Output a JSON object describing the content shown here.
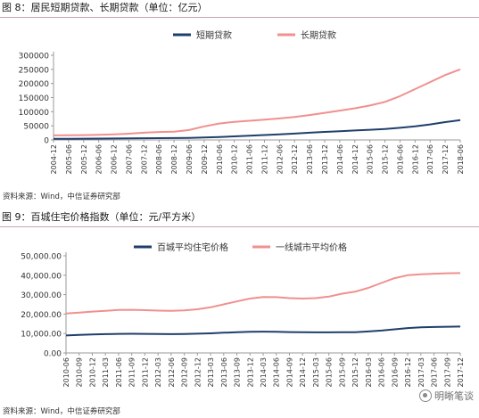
{
  "fig1": {
    "title": "图 8：居民短期贷款、长期贷款（单位：亿元）",
    "source": "资料来源：Wind，中信证券研究部"
  },
  "fig2": {
    "title": "图 9：百城住宅价格指数（单位：元/平方米）",
    "source": "资料来源：Wind，中信证券研究部"
  },
  "watermark": "明晰笔谈",
  "colors": {
    "short_series": "#1f3f6b",
    "long_series": "#f0908f",
    "axis": "#9a9a9a",
    "text": "#333333"
  },
  "chart_data": [
    {
      "type": "line",
      "title": "",
      "xlabel": "",
      "ylabel": "",
      "ylim": [
        0,
        300000
      ],
      "yticks": [
        "0",
        "50000",
        "100000",
        "150000",
        "200000",
        "250000",
        "300000"
      ],
      "categories": [
        "2004-12",
        "2005-06",
        "2005-12",
        "2006-06",
        "2006-12",
        "2007-06",
        "2007-12",
        "2008-06",
        "2008-12",
        "2009-06",
        "2009-12",
        "2010-06",
        "2010-12",
        "2011-06",
        "2011-12",
        "2012-06",
        "2012-12",
        "2013-06",
        "2013-12",
        "2014-06",
        "2014-12",
        "2015-06",
        "2015-12",
        "2016-06",
        "2016-12",
        "2017-06",
        "2017-12",
        "2018-06"
      ],
      "legend_position": "top-right",
      "grid": false,
      "series": [
        {
          "name": "短期贷款",
          "values": [
            4000,
            4200,
            4500,
            4700,
            5000,
            5500,
            6000,
            6200,
            6500,
            7200,
            8500,
            10500,
            12500,
            15000,
            17500,
            20000,
            22500,
            25500,
            28500,
            31000,
            33500,
            36000,
            39000,
            43000,
            48000,
            55000,
            63000,
            70000
          ]
        },
        {
          "name": "长期贷款",
          "values": [
            16000,
            16500,
            17000,
            18000,
            19500,
            22000,
            25500,
            28000,
            29000,
            35000,
            48000,
            58000,
            64000,
            68000,
            72000,
            76000,
            81000,
            88000,
            96000,
            104000,
            112000,
            122000,
            135000,
            155000,
            180000,
            205000,
            230000,
            250000
          ]
        }
      ]
    },
    {
      "type": "line",
      "title": "",
      "xlabel": "",
      "ylabel": "",
      "ylim": [
        0,
        50000
      ],
      "yticks": [
        "0.00",
        "10,000.00",
        "20,000.00",
        "30,000.00",
        "40,000.00",
        "50,000.00"
      ],
      "categories": [
        "2010-06",
        "2010-09",
        "2010-12",
        "2011-03",
        "2011-06",
        "2011-09",
        "2011-12",
        "2012-03",
        "2012-06",
        "2012-09",
        "2012-12",
        "2013-03",
        "2013-06",
        "2013-09",
        "2013-12",
        "2014-03",
        "2014-06",
        "2014-09",
        "2014-12",
        "2015-03",
        "2015-06",
        "2015-09",
        "2015-12",
        "2016-03",
        "2016-06",
        "2016-09",
        "2016-12",
        "2017-03",
        "2017-06",
        "2017-09",
        "2017-12"
      ],
      "legend_position": "top",
      "grid": false,
      "series": [
        {
          "name": "百城平均住宅价格",
          "values": [
            9000,
            9300,
            9500,
            9700,
            9800,
            9850,
            9800,
            9750,
            9700,
            9750,
            9900,
            10100,
            10400,
            10650,
            10850,
            10950,
            10900,
            10750,
            10650,
            10600,
            10600,
            10650,
            10700,
            11050,
            11500,
            12150,
            12800,
            13150,
            13350,
            13500,
            13600
          ]
        },
        {
          "name": "一线城市平均价格",
          "values": [
            20300,
            20800,
            21300,
            21700,
            22100,
            22200,
            22000,
            21800,
            21700,
            21900,
            22500,
            23500,
            25000,
            26500,
            28000,
            28800,
            28700,
            28200,
            28000,
            28200,
            29000,
            30500,
            31500,
            33500,
            36000,
            38500,
            40000,
            40500,
            40800,
            41000,
            41100
          ]
        }
      ]
    }
  ]
}
